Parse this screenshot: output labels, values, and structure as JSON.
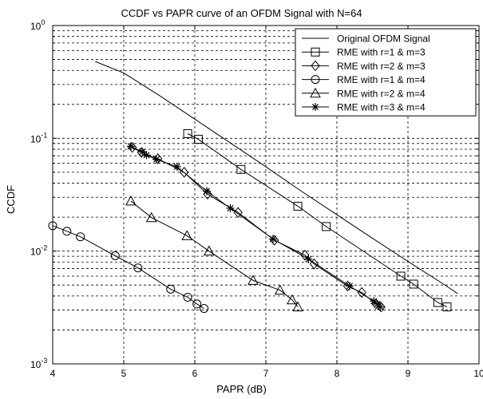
{
  "chart_data": {
    "type": "line",
    "title": "CCDF vs PAPR curve of an OFDM Signal with N=64",
    "xlabel": "PAPR (dB)",
    "ylabel": "CCDF",
    "xlim": [
      4,
      10
    ],
    "ylim": [
      0.001,
      1
    ],
    "yscale": "log",
    "grid": true,
    "legend_position": "top-right",
    "x_ticks": [
      "4",
      "5",
      "6",
      "7",
      "8",
      "9",
      "10"
    ],
    "y_ticks": [
      {
        "value": 1,
        "base": "10",
        "exp": "0"
      },
      {
        "value": 0.1,
        "base": "10",
        "exp": "-1"
      },
      {
        "value": 0.01,
        "base": "10",
        "exp": "-2"
      },
      {
        "value": 0.001,
        "base": "10",
        "exp": "-3"
      }
    ],
    "series": [
      {
        "name": "Original OFDM Signal",
        "marker": "none",
        "x": [
          4.6,
          5.0,
          5.5,
          6.0,
          6.5,
          7.0,
          7.5,
          8.0,
          8.5,
          9.0,
          9.5,
          9.7
        ],
        "y": [
          0.48,
          0.38,
          0.24,
          0.148,
          0.091,
          0.056,
          0.034,
          0.021,
          0.013,
          0.0081,
          0.0051,
          0.0042
        ]
      },
      {
        "name": "RME with r=1 & m=3",
        "marker": "square",
        "x": [
          5.9,
          6.05,
          6.65,
          7.45,
          7.85,
          8.9,
          9.08,
          9.42,
          9.55
        ],
        "y": [
          0.11,
          0.098,
          0.053,
          0.025,
          0.0165,
          0.006,
          0.0051,
          0.0035,
          0.0032
        ]
      },
      {
        "name": "RME with r=2 & m=3",
        "marker": "diamond",
        "x": [
          5.12,
          5.25,
          5.48,
          5.85,
          6.18,
          6.61,
          7.12,
          7.55,
          7.68,
          8.15,
          8.35,
          8.55,
          8.62
        ],
        "y": [
          0.083,
          0.075,
          0.066,
          0.05,
          0.032,
          0.022,
          0.0125,
          0.0092,
          0.0077,
          0.0049,
          0.0043,
          0.0034,
          0.0032
        ]
      },
      {
        "name": "RME with r=1 & m=4",
        "marker": "circle",
        "x": [
          4.0,
          4.2,
          4.39,
          4.88,
          5.2,
          5.66,
          5.9,
          6.03,
          6.13
        ],
        "y": [
          0.0168,
          0.015,
          0.0134,
          0.0091,
          0.0071,
          0.0046,
          0.0039,
          0.0034,
          0.0031
        ]
      },
      {
        "name": "RME with r=2 & m=4",
        "marker": "triangle",
        "x": [
          5.1,
          5.39,
          5.89,
          6.2,
          6.82,
          7.2,
          7.37,
          7.45
        ],
        "y": [
          0.0278,
          0.0198,
          0.0137,
          0.01,
          0.0055,
          0.0045,
          0.0037,
          0.0032
        ]
      },
      {
        "name": "RME with r=3 & m=4",
        "marker": "star",
        "x": [
          5.1,
          5.26,
          5.32,
          5.46,
          5.75,
          6.17,
          6.5,
          7.1,
          7.6,
          8.18,
          8.52,
          8.57,
          8.61
        ],
        "y": [
          0.085,
          0.076,
          0.071,
          0.065,
          0.056,
          0.034,
          0.024,
          0.0128,
          0.0085,
          0.0049,
          0.0036,
          0.0034,
          0.0032
        ]
      }
    ]
  }
}
